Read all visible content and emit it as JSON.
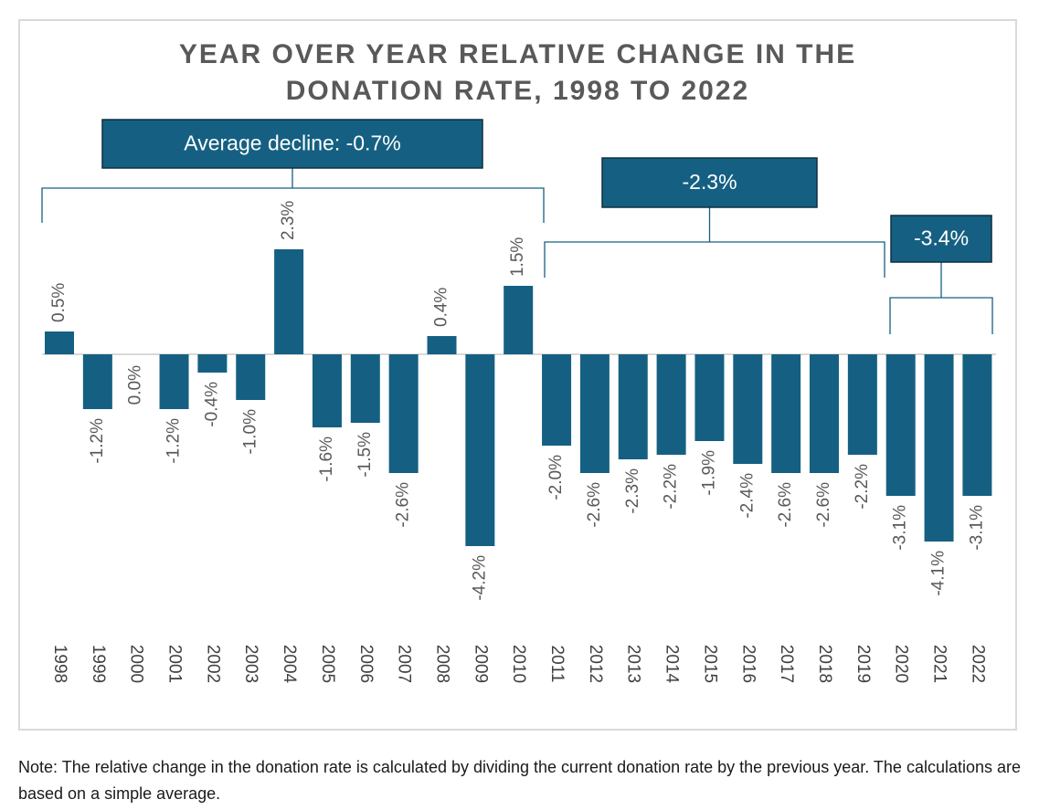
{
  "title_line1": "YEAR OVER YEAR RELATIVE CHANGE IN THE",
  "title_line2": "DONATION RATE, 1998 TO 2022",
  "note": "Note: The relative change in the donation rate is calculated by dividing the current donation rate by the previous year. The calculations are based on a simple average.",
  "colors": {
    "bar": "#156082",
    "label": "#595959",
    "bracket": "#156082",
    "box_text": "#ffffff"
  },
  "chart_data": {
    "type": "bar",
    "title": "YEAR OVER YEAR RELATIVE CHANGE IN THE DONATION RATE, 1998 TO 2022",
    "xlabel": "",
    "ylabel": "",
    "categories": [
      "1998",
      "1999",
      "2000",
      "2001",
      "2002",
      "2003",
      "2004",
      "2005",
      "2006",
      "2007",
      "2008",
      "2009",
      "2010",
      "2011",
      "2012",
      "2013",
      "2014",
      "2015",
      "2016",
      "2017",
      "2018",
      "2019",
      "2020",
      "2021",
      "2022"
    ],
    "values": [
      0.5,
      -1.2,
      0.0,
      -1.2,
      -0.4,
      -1.0,
      2.3,
      -1.6,
      -1.5,
      -2.6,
      0.4,
      -4.2,
      1.5,
      -2.0,
      -2.6,
      -2.3,
      -2.2,
      -1.9,
      -2.4,
      -2.6,
      -2.6,
      -2.2,
      -3.1,
      -4.1,
      -3.1
    ],
    "data_labels": [
      "0.5%",
      "-1.2%",
      "0.0%",
      "-1.2%",
      "-0.4%",
      "-1.0%",
      "2.3%",
      "-1.6%",
      "-1.5%",
      "-2.6%",
      "0.4%",
      "-4.2%",
      "1.5%",
      "-2.0%",
      "-2.6%",
      "-2.3%",
      "-2.2%",
      "-1.9%",
      "-2.4%",
      "-2.6%",
      "-2.6%",
      "-2.2%",
      "-3.1%",
      "-4.1%",
      "-3.1%"
    ],
    "annotations": [
      {
        "text": "Average decline: -0.7%",
        "from": "1998",
        "to": "2010"
      },
      {
        "text": "-2.3%",
        "from": "2011",
        "to": "2019"
      },
      {
        "text": "-3.4%",
        "from": "2020",
        "to": "2022"
      }
    ],
    "grid": false,
    "legend": "none"
  }
}
